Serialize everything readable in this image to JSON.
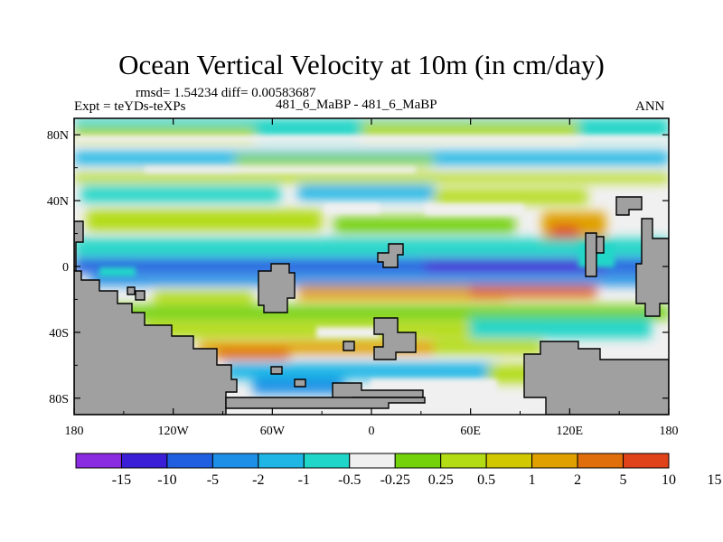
{
  "chart_data": {
    "type": "heatmap",
    "title": "Ocean Vertical Velocity at 10m (in cm/day)",
    "stats_text": "rmsd= 1.54234 diff= 0.00583687",
    "expt_text": "Expt = teYDs-teXPs",
    "case_text": "481_6_MaBP - 481_6_MaBP",
    "season_text": "ANN",
    "xlim": [
      -180,
      180
    ],
    "ylim": [
      -90,
      90
    ],
    "x_ticks": [
      {
        "value": -180,
        "label": "180"
      },
      {
        "value": -120,
        "label": "120W"
      },
      {
        "value": -60,
        "label": "60W"
      },
      {
        "value": 0,
        "label": "0"
      },
      {
        "value": 60,
        "label": "60E"
      },
      {
        "value": 120,
        "label": "120E"
      },
      {
        "value": 180,
        "label": "180"
      }
    ],
    "y_ticks": [
      {
        "value": 80,
        "label": "80N"
      },
      {
        "value": 40,
        "label": "40N"
      },
      {
        "value": 0,
        "label": "0"
      },
      {
        "value": -40,
        "label": "40S"
      },
      {
        "value": -80,
        "label": "80S"
      }
    ],
    "colorbar": {
      "colors": [
        "#8a2be2",
        "#3a1fd6",
        "#1f5fe0",
        "#1e8fe6",
        "#1fb6e6",
        "#20d6c8",
        "#f0f0f0",
        "#74d20a",
        "#b4dc14",
        "#d2c800",
        "#e0a000",
        "#e06e0a",
        "#e0421a"
      ],
      "labels": [
        "-15",
        "-10",
        "-5",
        "-2",
        "-1",
        "-0.5",
        "-0.25",
        "0.25",
        "0.5",
        "1",
        "2",
        "5",
        "10",
        "15"
      ]
    },
    "land_color": "#a0a0a0"
  }
}
